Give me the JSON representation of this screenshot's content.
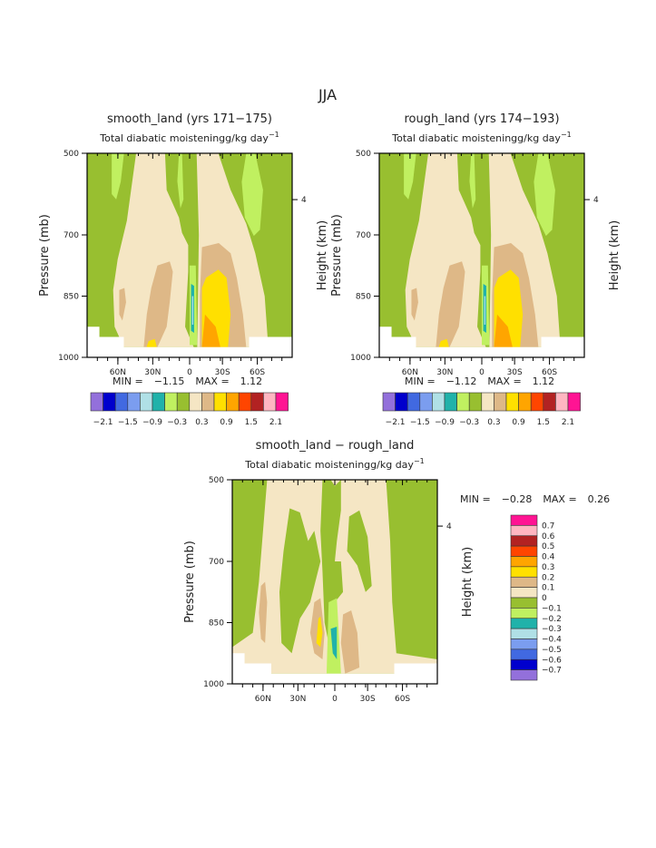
{
  "chart_data": {
    "type": "heatmap",
    "title": "JJA",
    "panels": [
      {
        "id": "smooth",
        "title": "smooth_land (yrs 171−175)",
        "subtitle": "Total diabatic moistening",
        "units": "g/kg day",
        "units_exp": "−1",
        "ylabel": "Pressure (mb)",
        "ylabel_right": "Height (km)",
        "yticks": [
          "500",
          "700",
          "850",
          "1000"
        ],
        "yticks_right": [
          "4"
        ],
        "xticks": [
          "60N",
          "30N",
          "0",
          "30S",
          "60S"
        ],
        "min_label": "MIN =",
        "min": "−1.15",
        "max_label": "MAX =",
        "max": "1.12"
      },
      {
        "id": "rough",
        "title": "rough_land (yrs 174−193)",
        "subtitle": "Total diabatic moistening",
        "units": "g/kg day",
        "units_exp": "−1",
        "ylabel": "Pressure (mb)",
        "ylabel_right": "Height (km)",
        "yticks": [
          "500",
          "700",
          "850",
          "1000"
        ],
        "yticks_right": [
          "4"
        ],
        "xticks": [
          "60N",
          "30N",
          "0",
          "30S",
          "60S"
        ],
        "min_label": "MIN =",
        "min": "−1.12",
        "max_label": "MAX =",
        "max": "1.12"
      },
      {
        "id": "diff",
        "title": "smooth_land − rough_land",
        "subtitle": "Total diabatic moistening",
        "units": "g/kg day",
        "units_exp": "−1",
        "ylabel": "Pressure (mb)",
        "ylabel_right": "Height (km)",
        "yticks": [
          "500",
          "700",
          "850",
          "1000"
        ],
        "yticks_right": [
          "4"
        ],
        "xticks": [
          "60N",
          "30N",
          "0",
          "30S",
          "60S"
        ],
        "min_label": "MIN =",
        "min": "−0.28",
        "max_label": "MAX =",
        "max": "0.26"
      }
    ],
    "colors": [
      "#9370DB",
      "#0000CD",
      "#4169E1",
      "#7B9DEF",
      "#B0E0E6",
      "#20B2AA",
      "#C0F060",
      "#98BF30",
      "#F5E6C4",
      "#DEB887",
      "#FFE000",
      "#FFA500",
      "#FF4500",
      "#B22222",
      "#FFB6C1",
      "#FF1493"
    ],
    "colorbar_top": {
      "labels": [
        "−2.1",
        "−1.5",
        "−0.9",
        "−0.3",
        "0.3",
        "0.9",
        "1.5",
        "2.1"
      ]
    },
    "colorbar_diff": {
      "labels": [
        "0.7",
        "0.6",
        "0.5",
        "0.4",
        "0.3",
        "0.2",
        "0.1",
        "0",
        "−0.1",
        "−0.2",
        "−0.3",
        "−0.4",
        "−0.5",
        "−0.6",
        "−0.7"
      ]
    }
  }
}
